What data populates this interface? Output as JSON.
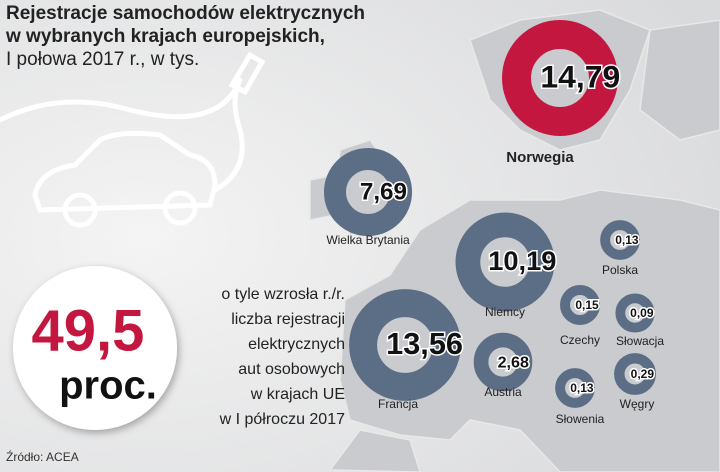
{
  "chart_data": {
    "type": "donut-map",
    "title": [
      "Rejestracje samochodów elektrycznych",
      "w wybranych krajach europejskich,"
    ],
    "subtitle": "I połowa 2017 r., w tys.",
    "categories": [
      "Norwegia",
      "Wielka Brytania",
      "Niemcy",
      "Francja",
      "Austria",
      "Polska",
      "Czechy",
      "Słowacja",
      "Słowenia",
      "Węgry"
    ],
    "values": [
      14.79,
      7.69,
      10.19,
      13.56,
      2.68,
      0.13,
      0.15,
      0.09,
      0.13,
      0.29
    ],
    "value_labels": [
      "14,79",
      "7,69",
      "10,19",
      "13,56",
      "2,68",
      "0,13",
      "0,15",
      "0,09",
      "0,13",
      "0,29"
    ],
    "colors": [
      "#c4173f",
      "#5b6e85",
      "#5b6e85",
      "#5b6e85",
      "#5b6e85",
      "#5b6e85",
      "#5b6e85",
      "#5b6e85",
      "#5b6e85",
      "#5b6e85"
    ],
    "highlight": {
      "label": "49,5",
      "unit": "proc.",
      "color": "#c4173f",
      "text": [
        "o tyle wzrosła r./r.",
        "liczba rejestracji",
        "elektrycznych",
        "aut osobowych",
        "w krajach UE",
        "w I półroczu 2017"
      ]
    },
    "source": "Źródło: ACEA"
  }
}
